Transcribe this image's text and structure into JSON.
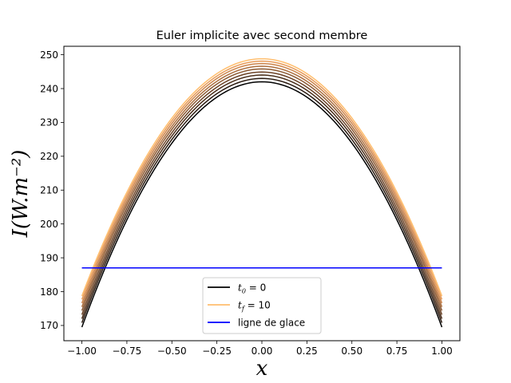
{
  "chart_data": {
    "type": "line",
    "title": "Euler implicite avec second membre",
    "xlabel": "x",
    "ylabel": "I(W.m⁻²)",
    "xlim": [
      -1.1,
      1.1
    ],
    "ylim": [
      165.5,
      252.5
    ],
    "xticks": [
      -1.0,
      -0.75,
      -0.5,
      -0.25,
      0.0,
      0.25,
      0.5,
      0.75,
      1.0
    ],
    "xtick_labels": [
      "−1.00",
      "−0.75",
      "−0.50",
      "−0.25",
      "0.00",
      "0.25",
      "0.50",
      "0.75",
      "1.00"
    ],
    "yticks": [
      170,
      180,
      190,
      200,
      210,
      220,
      230,
      240,
      250
    ],
    "ytick_labels": [
      "170",
      "180",
      "190",
      "200",
      "210",
      "220",
      "230",
      "240",
      "250"
    ],
    "grid": false,
    "legend": {
      "placement": "lower center",
      "entries": [
        {
          "label_base": "t",
          "label_sub": "0",
          "label_rest": " = 0",
          "color": "#000000"
        },
        {
          "label_base": "t",
          "label_sub": "f",
          "label_rest": " = 10",
          "color": "#ffbe6e"
        },
        {
          "label_base": "ligne de glace",
          "label_sub": "",
          "label_rest": "",
          "color": "#0000ff"
        }
      ]
    },
    "curves": {
      "model": "I(x) = center - (center - edge) * x^2",
      "x_range": [
        -1.0,
        1.0
      ],
      "series": [
        {
          "center": 242.0,
          "edge": 169.5,
          "color": "#000000"
        },
        {
          "center": 243.0,
          "edge": 170.8,
          "color": "#2a1a10"
        },
        {
          "center": 244.0,
          "edge": 172.0,
          "color": "#4a2e1a"
        },
        {
          "center": 244.9,
          "edge": 173.2,
          "color": "#6b4226"
        },
        {
          "center": 245.8,
          "edge": 174.4,
          "color": "#8c5a33"
        },
        {
          "center": 246.6,
          "edge": 175.5,
          "color": "#ad7040"
        },
        {
          "center": 247.4,
          "edge": 176.6,
          "color": "#cc854c"
        },
        {
          "center": 248.1,
          "edge": 177.7,
          "color": "#e89c5a"
        },
        {
          "center": 248.8,
          "edge": 178.7,
          "color": "#ffbe6e"
        }
      ]
    },
    "ice_line": {
      "y": 187.0,
      "x_range": [
        -1.0,
        1.0
      ],
      "color": "#0000ff"
    }
  }
}
